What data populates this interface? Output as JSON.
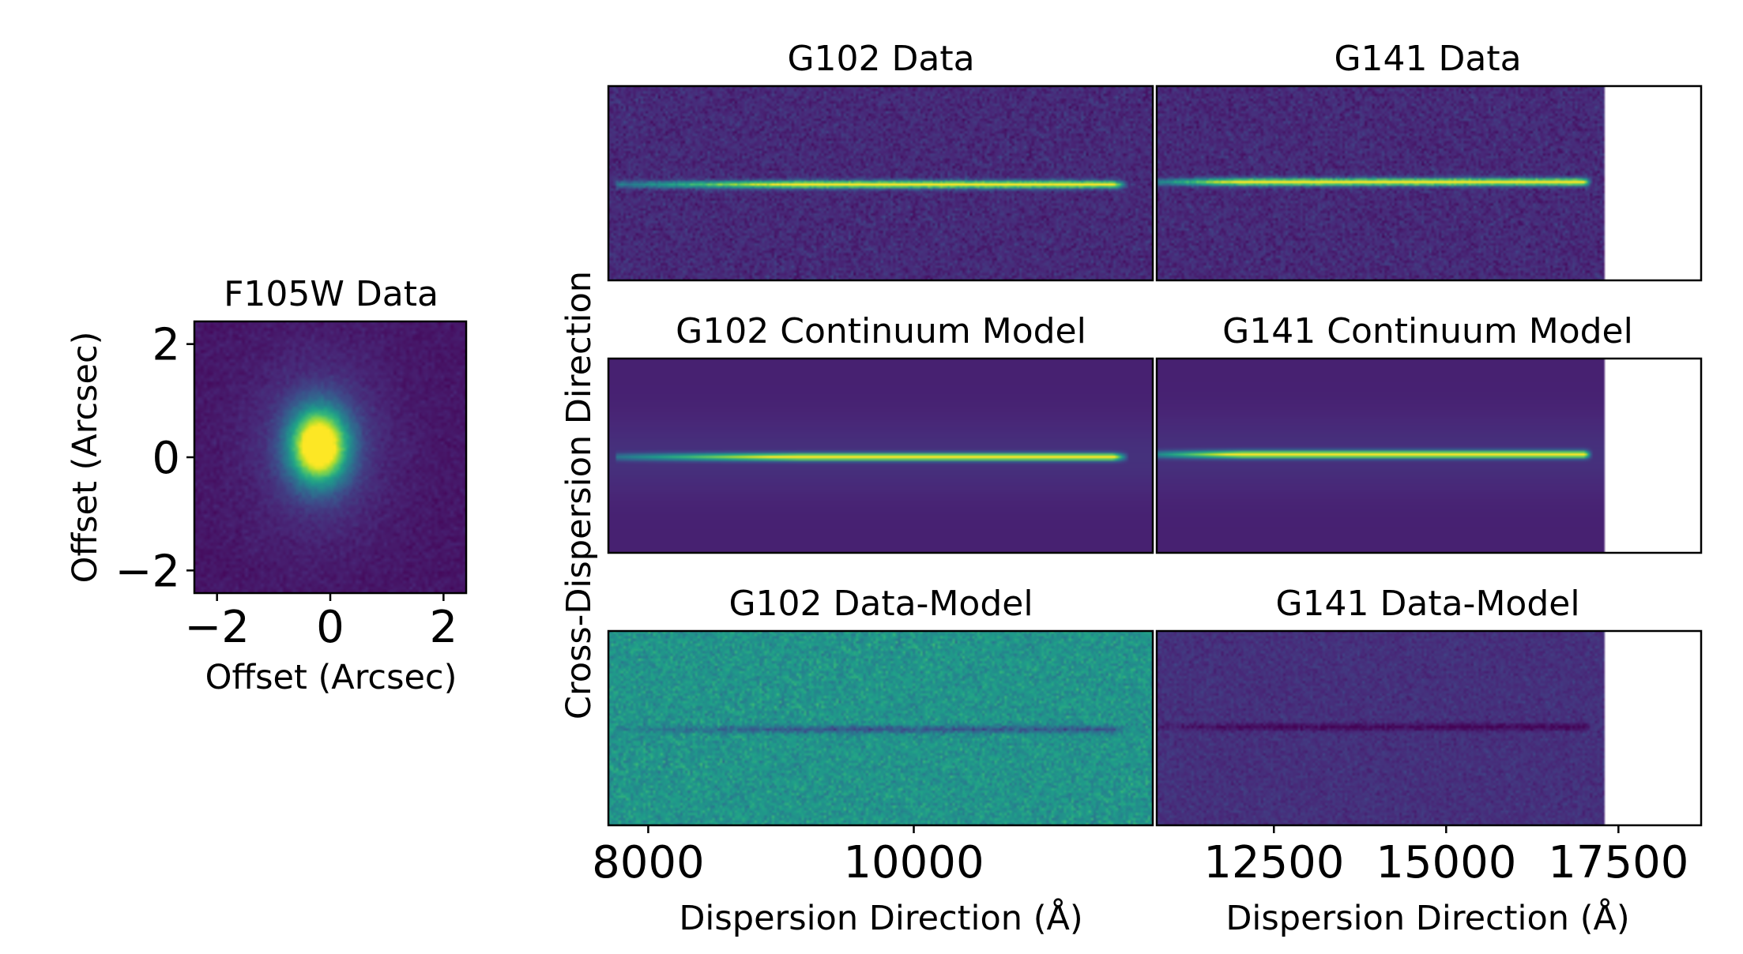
{
  "chart_data": [
    {
      "type": "heatmap",
      "title": "F105W Data",
      "xlabel": "Offset (Arcsec)",
      "ylabel": "Offset (Arcsec)",
      "xlim": [
        -2.4,
        2.4
      ],
      "ylim": [
        -2.4,
        2.4
      ],
      "xticks": [
        "−2",
        "0",
        "2"
      ],
      "xtick_values": [
        -2,
        0,
        2
      ],
      "yticks": [
        "−2",
        "0",
        "2"
      ],
      "ytick_values": [
        -2,
        0,
        2
      ],
      "source": {
        "x": -0.2,
        "y": 0.2,
        "sigma_x": 0.35,
        "sigma_y": 0.45
      },
      "colormap": "viridis"
    },
    {
      "type": "heatmap",
      "layout": "grid 3 rows x 2 columns",
      "ylabel": "Cross-Dispersion Direction",
      "xlabel_left": "Dispersion Direction (Å)",
      "xlabel_right": "Dispersion Direction (Å)",
      "colormap": "viridis",
      "left_xlim": [
        7700,
        11800
      ],
      "right_xlim": [
        10800,
        18700
      ],
      "right_data_end": 17300,
      "left_ticks": [
        "8000",
        "10000"
      ],
      "left_tick_values": [
        8000,
        10000
      ],
      "right_ticks": [
        "12500",
        "15000",
        "17500"
      ],
      "right_tick_values": [
        12500,
        15000,
        17500
      ],
      "panels": [
        {
          "title": "G102 Data",
          "kind": "data",
          "trace_start": 8000,
          "trace_end": 11500
        },
        {
          "title": "G141 Data",
          "kind": "data",
          "trace_start": 10900,
          "trace_end": 17000
        },
        {
          "title": "G102 Continuum Model",
          "kind": "model",
          "trace_start": 8000,
          "trace_end": 11500
        },
        {
          "title": "G141 Continuum Model",
          "kind": "model",
          "trace_start": 10900,
          "trace_end": 17000
        },
        {
          "title": "G102 Data-Model",
          "kind": "residual",
          "trace_start": 8000,
          "trace_end": 11500
        },
        {
          "title": "G141 Data-Model",
          "kind": "residual",
          "trace_start": 10900,
          "trace_end": 17000
        }
      ]
    }
  ]
}
